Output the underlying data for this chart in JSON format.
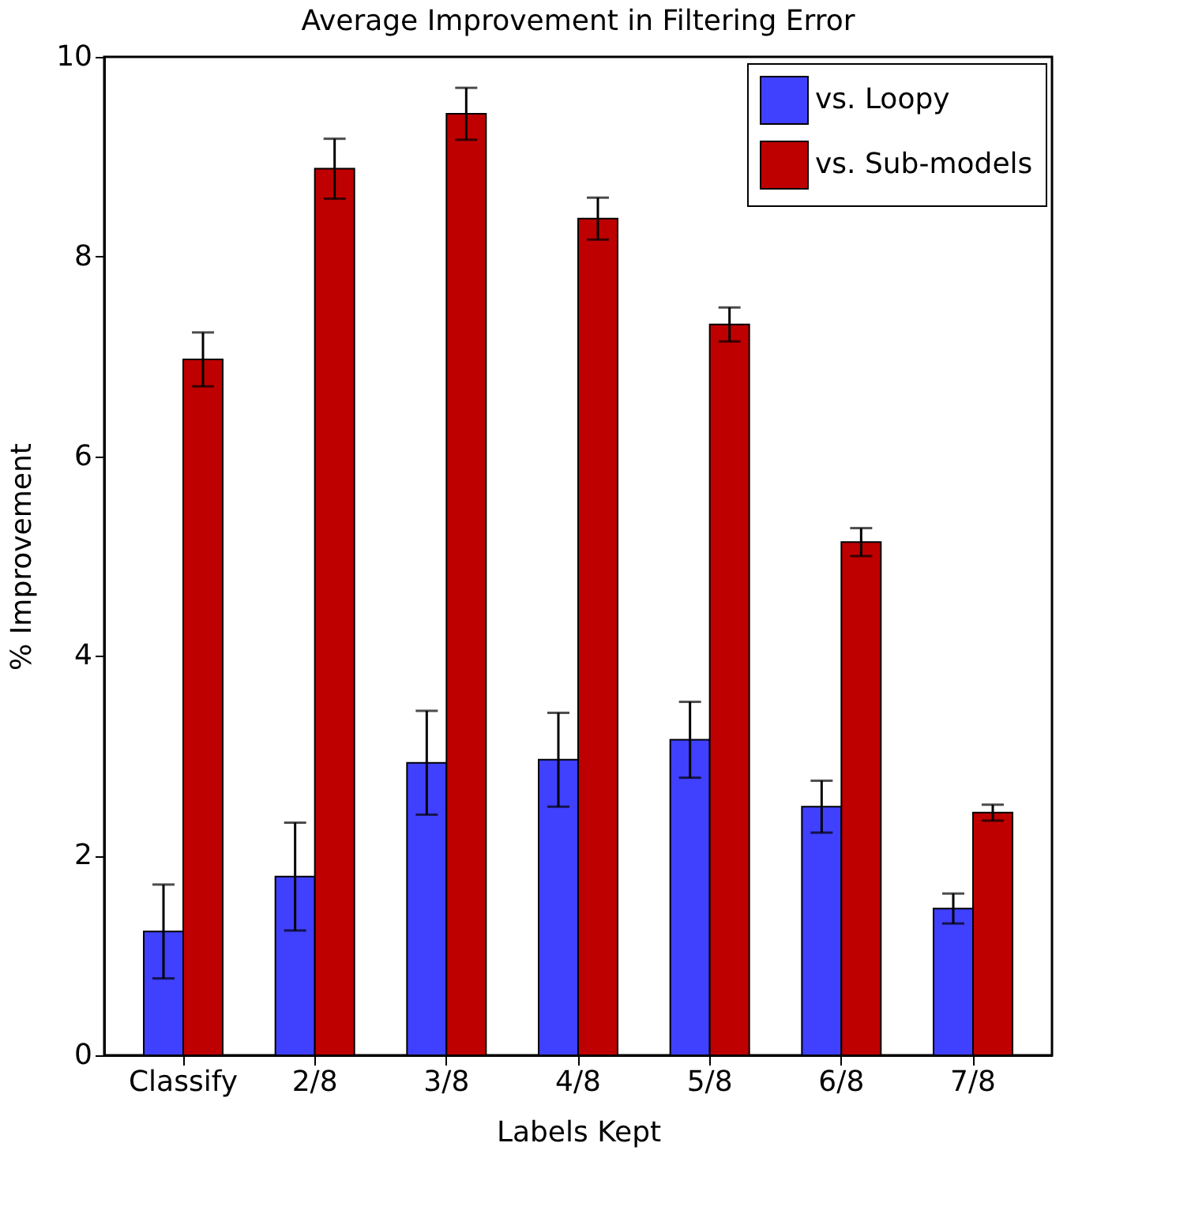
{
  "chart_data": {
    "type": "bar",
    "title": "Average Improvement in Filtering Error",
    "xlabel": "Labels Kept",
    "ylabel": "% Improvement",
    "categories": [
      "Classify",
      "2/8",
      "3/8",
      "4/8",
      "5/8",
      "6/8",
      "7/8"
    ],
    "series": [
      {
        "name": "vs. Loopy",
        "color": "#4040ff",
        "values": [
          1.24,
          1.79,
          2.93,
          2.96,
          3.16,
          2.49,
          1.47
        ],
        "errors": [
          0.47,
          0.54,
          0.52,
          0.47,
          0.38,
          0.26,
          0.15
        ]
      },
      {
        "name": "vs. Sub-models",
        "color": "#bf0000",
        "values": [
          6.97,
          8.88,
          9.43,
          8.38,
          7.32,
          5.14,
          2.43
        ],
        "errors": [
          0.27,
          0.3,
          0.26,
          0.21,
          0.17,
          0.14,
          0.08
        ]
      }
    ],
    "ylim": [
      0,
      10
    ],
    "yticks": [
      0,
      2,
      4,
      6,
      8,
      10
    ],
    "grid": false,
    "legend": "top right"
  }
}
